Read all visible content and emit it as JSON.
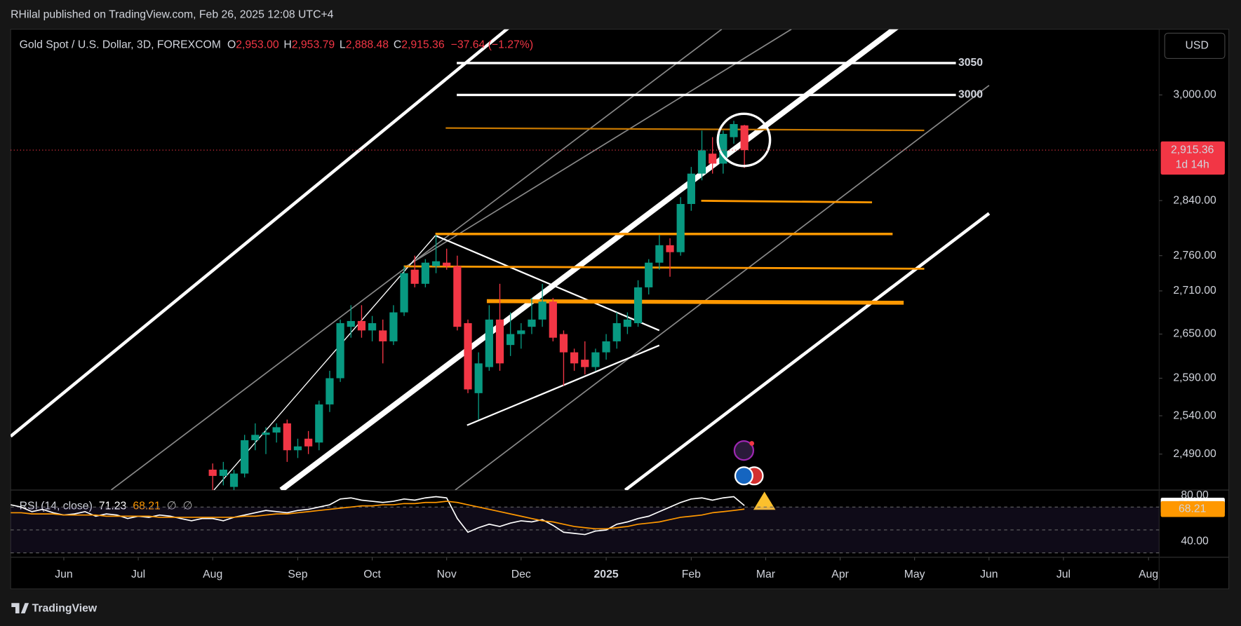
{
  "header": {
    "publisher": "RHilal published on TradingView.com, Feb 26, 2025 12:08 UTC+4"
  },
  "chart_data": [
    {
      "type": "candlestick",
      "title": "Gold Spot / U.S. Dollar, 3D, FOREXCOM",
      "ohlc_legend": [
        {
          "key": "O",
          "value": "2,953.00"
        },
        {
          "key": "H",
          "value": "2,953.79"
        },
        {
          "key": "L",
          "value": "2,888.48"
        },
        {
          "key": "C",
          "value": "2,915.36"
        }
      ],
      "change": "−37.64 (−1.27%)",
      "currency": "USD",
      "log_scale": true,
      "up_color": "#089981",
      "down_color": "#f23645",
      "x": [
        19,
        20,
        21,
        22,
        23,
        24,
        25,
        26,
        27,
        28,
        29,
        30,
        31,
        32,
        33,
        34,
        35,
        36,
        37,
        38,
        39,
        40,
        41,
        42,
        43,
        44,
        45,
        46,
        47,
        48,
        49,
        50,
        51,
        52,
        53,
        54,
        55,
        56,
        57,
        58,
        59,
        60,
        61,
        62,
        63,
        64,
        65,
        66,
        67,
        68,
        69
      ],
      "open": [
        2470,
        2462,
        2448,
        2465,
        2508,
        2515,
        2518,
        2530,
        2495,
        2510,
        2505,
        2555,
        2590,
        2660,
        2668,
        2655,
        2655,
        2640,
        2680,
        2740,
        2720,
        2745,
        2750,
        2745,
        2665,
        2570,
        2605,
        2670,
        2635,
        2650,
        2660,
        2670,
        2695,
        2650,
        2625,
        2615,
        2605,
        2625,
        2640,
        2660,
        2665,
        2715,
        2750,
        2775,
        2765,
        2835,
        2880,
        2910,
        2895,
        2935,
        2953
      ],
      "high": [
        2478,
        2480,
        2470,
        2515,
        2530,
        2525,
        2530,
        2535,
        2510,
        2520,
        2560,
        2600,
        2670,
        2690,
        2690,
        2675,
        2670,
        2690,
        2745,
        2760,
        2755,
        2790,
        2770,
        2760,
        2670,
        2625,
        2690,
        2720,
        2680,
        2665,
        2700,
        2720,
        2700,
        2655,
        2630,
        2640,
        2630,
        2650,
        2680,
        2680,
        2725,
        2755,
        2790,
        2785,
        2845,
        2890,
        2945,
        2935,
        2945,
        2960,
        2953.79
      ],
      "low": [
        2440,
        2450,
        2440,
        2460,
        2495,
        2490,
        2505,
        2480,
        2485,
        2490,
        2495,
        2545,
        2585,
        2645,
        2645,
        2640,
        2610,
        2635,
        2675,
        2715,
        2715,
        2735,
        2740,
        2655,
        2570,
        2535,
        2600,
        2600,
        2620,
        2630,
        2650,
        2660,
        2640,
        2580,
        2600,
        2595,
        2600,
        2615,
        2630,
        2650,
        2660,
        2705,
        2740,
        2730,
        2760,
        2825,
        2870,
        2880,
        2880,
        2925,
        2888.48
      ],
      "close": [
        2462,
        2470,
        2465,
        2508,
        2515,
        2518,
        2525,
        2495,
        2500,
        2500,
        2555,
        2590,
        2665,
        2668,
        2655,
        2665,
        2640,
        2680,
        2735,
        2720,
        2750,
        2752,
        2745,
        2660,
        2575,
        2610,
        2670,
        2610,
        2650,
        2655,
        2670,
        2695,
        2645,
        2625,
        2610,
        2605,
        2625,
        2640,
        2665,
        2670,
        2715,
        2750,
        2775,
        2765,
        2835,
        2880,
        2915,
        2895,
        2940,
        2955,
        2915.36
      ],
      "last_price_label": "2,915.36",
      "countdown": "1d 14h",
      "levels": [
        3050,
        3000
      ],
      "xlim": [
        0,
        108
      ],
      "xticks": [
        {
          "value": 5,
          "label": "Jun"
        },
        {
          "value": 12,
          "label": "Jul"
        },
        {
          "value": 19,
          "label": "Aug"
        },
        {
          "value": 27,
          "label": "Sep"
        },
        {
          "value": 34,
          "label": "Oct"
        },
        {
          "value": 41,
          "label": "Nov"
        },
        {
          "value": 48,
          "label": "Dec"
        },
        {
          "value": 56,
          "label": "2025",
          "bold": true
        },
        {
          "value": 64,
          "label": "Feb"
        },
        {
          "value": 71,
          "label": "Mar"
        },
        {
          "value": 78,
          "label": "Apr"
        },
        {
          "value": 85,
          "label": "May"
        },
        {
          "value": 92,
          "label": "Jun"
        },
        {
          "value": 99,
          "label": "Jul"
        },
        {
          "value": 107,
          "label": "Aug"
        }
      ],
      "ylim": [
        2444,
        3104
      ],
      "yticks": [
        {
          "value": 2490,
          "label": "2,490.00"
        },
        {
          "value": 2540,
          "label": "2,540.00"
        },
        {
          "value": 2590,
          "label": "2,590.00"
        },
        {
          "value": 2650,
          "label": "2,650.00"
        },
        {
          "value": 2710,
          "label": "2,710.00"
        },
        {
          "value": 2760,
          "label": "2,760.00"
        },
        {
          "value": 2840,
          "label": "2,840.00"
        },
        {
          "value": 3000,
          "label": "3,000.00"
        }
      ]
    },
    {
      "type": "line",
      "title": "RSI (14, close)",
      "placeholders": [
        "∅",
        "∅"
      ],
      "x": [
        0,
        1,
        2,
        3,
        4,
        5,
        6,
        7,
        8,
        9,
        10,
        11,
        12,
        13,
        14,
        15,
        16,
        17,
        18,
        19,
        20,
        21,
        22,
        23,
        24,
        25,
        26,
        27,
        28,
        29,
        30,
        31,
        32,
        33,
        34,
        35,
        36,
        37,
        38,
        39,
        40,
        41,
        42,
        43,
        44,
        45,
        46,
        47,
        48,
        49,
        50,
        51,
        52,
        53,
        54,
        55,
        56,
        57,
        58,
        59,
        60,
        61,
        62,
        63,
        64,
        65,
        66,
        67,
        68,
        69
      ],
      "series": [
        {
          "color": "#ffffff",
          "values": [
            72,
            70,
            66,
            68,
            65,
            63,
            64,
            66,
            62,
            64,
            63,
            60,
            62,
            61,
            63,
            62,
            60,
            58,
            60,
            60,
            58,
            61,
            63,
            65,
            67,
            66,
            65,
            67,
            68,
            70,
            72,
            77,
            78,
            76,
            75,
            74,
            75,
            77,
            76,
            78,
            79,
            78,
            60,
            48,
            52,
            55,
            53,
            56,
            58,
            57,
            59,
            54,
            48,
            47,
            46,
            49,
            50,
            55,
            57,
            60,
            62,
            66,
            70,
            74,
            77,
            78,
            76,
            78,
            79,
            71.23
          ]
        },
        {
          "color": "#ff9800",
          "values": [
            65,
            65,
            64,
            64,
            64,
            63,
            63,
            63,
            63,
            62,
            62,
            62,
            62,
            62,
            61,
            61,
            61,
            61,
            61,
            61,
            61,
            61,
            62,
            62,
            63,
            64,
            64,
            65,
            66,
            67,
            68,
            69,
            70,
            71,
            71,
            72,
            72,
            73,
            73,
            74,
            74,
            75,
            74,
            72,
            70,
            68,
            66,
            64,
            62,
            60,
            58,
            57,
            55,
            53,
            52,
            51,
            51,
            52,
            53,
            55,
            56,
            57,
            59,
            61,
            62,
            63,
            65,
            66,
            67,
            68.21
          ]
        }
      ],
      "levels": [
        70,
        50,
        30
      ],
      "ylim": [
        26.2,
        84.8
      ],
      "yticks": [
        {
          "value": 80,
          "label": "80.00"
        },
        {
          "value": 40,
          "label": "40.00"
        }
      ]
    }
  ],
  "footer": {
    "brand": "TradingView"
  }
}
